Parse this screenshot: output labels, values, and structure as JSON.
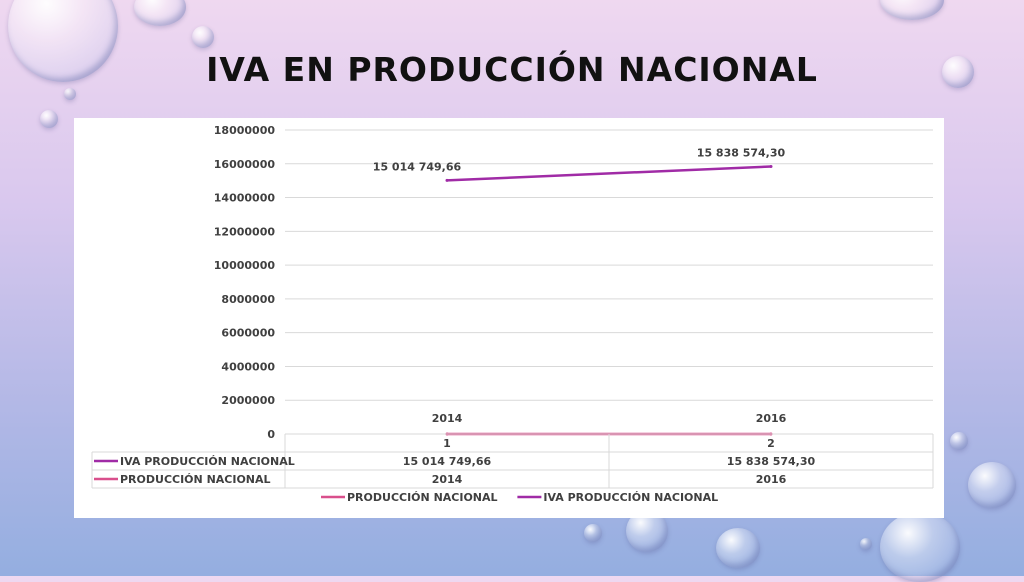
{
  "slide": {
    "title": "IVA EN PRODUCCIÓN NACIONAL"
  },
  "colors": {
    "iva": "#a02ba6",
    "produccion": "#d94f8c",
    "grid": "#d9d9d9",
    "text": "#404040"
  },
  "chart_data": {
    "type": "line",
    "categories": [
      "1",
      "2"
    ],
    "category_labels": [
      "2014",
      "2016"
    ],
    "ylim": [
      0,
      18000000
    ],
    "y_ticks": [
      "0",
      "2000000",
      "4000000",
      "6000000",
      "8000000",
      "10000000",
      "12000000",
      "14000000",
      "16000000",
      "18000000"
    ],
    "grid": true,
    "legend_position": "bottom",
    "series": [
      {
        "name": "PRODUCCIÓN NACIONAL",
        "values": [
          2014,
          2016
        ],
        "labels": [
          "2014",
          "2016"
        ],
        "color": "#d94f8c"
      },
      {
        "name": "IVA PRODUCCIÓN NACIONAL",
        "values": [
          15014749.66,
          15838574.3
        ],
        "labels": [
          "15 014 749,66",
          "15 838 574,30"
        ],
        "color": "#a02ba6"
      }
    ],
    "data_table": {
      "header": [
        "1",
        "2"
      ],
      "rows": [
        {
          "series": "IVA PRODUCCIÓN NACIONAL",
          "cells": [
            "15 014 749,66",
            "15 838 574,30"
          ]
        },
        {
          "series": "PRODUCCIÓN NACIONAL",
          "cells": [
            "2014",
            "2016"
          ]
        }
      ]
    }
  }
}
